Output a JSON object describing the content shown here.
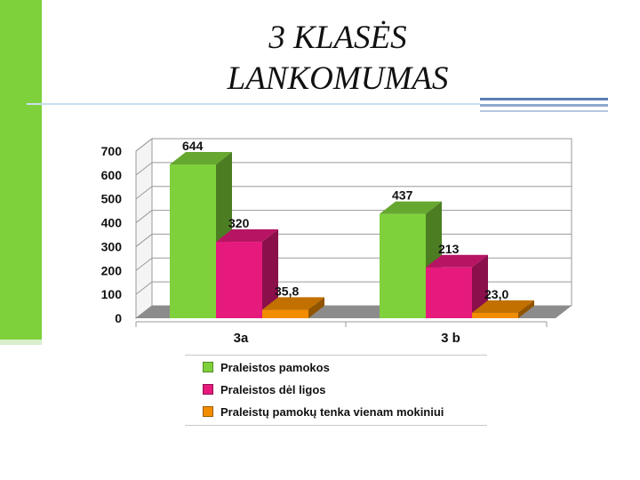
{
  "slide": {
    "title_line1": "3 KLASĖS",
    "title_line2": "LANKOMUMAS",
    "accent_color": "#7fd13b"
  },
  "chart_data": {
    "type": "bar",
    "categories": [
      "3a",
      "3 b"
    ],
    "series": [
      {
        "name": "Praleistos pamokos",
        "values": [
          644,
          437
        ],
        "labels": [
          "644",
          "437"
        ],
        "color": "#7fd13b"
      },
      {
        "name": "Praleistos dėl ligos",
        "values": [
          320,
          213
        ],
        "labels": [
          "320",
          "213"
        ],
        "color": "#e6197d"
      },
      {
        "name": "Praleistų pamokų tenka vienam mokiniui",
        "values": [
          35.8,
          23.0
        ],
        "labels": [
          "35,8",
          "23,0"
        ],
        "color": "#f28c00"
      }
    ],
    "yticks": [
      "0",
      "100",
      "200",
      "300",
      "400",
      "500",
      "600",
      "700"
    ],
    "ylim": [
      0,
      700
    ],
    "grid": true,
    "three_d": true,
    "legend_position": "bottom"
  }
}
